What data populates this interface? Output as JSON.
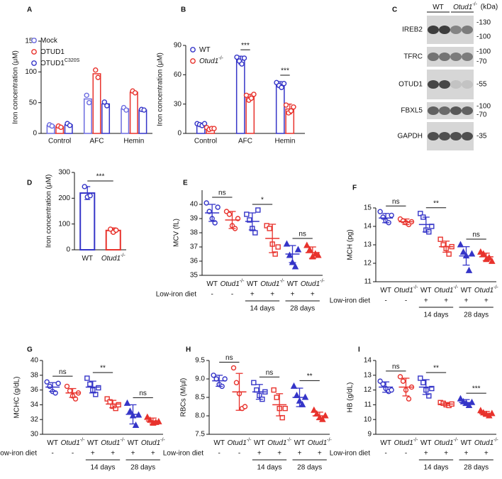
{
  "chart_data": [
    {
      "type": "grouped-bar",
      "panel": "A",
      "y_label": "Iron concentration (μM)",
      "categories": [
        "Control",
        "AFC",
        "Hemin"
      ],
      "ylim": [
        0,
        150
      ],
      "yticks": [
        0,
        50,
        100,
        150
      ],
      "series": [
        {
          "name": "Mock",
          "color": "#6b6be0",
          "values": [
            13,
            56,
            40
          ],
          "points": [
            [
              14,
              12
            ],
            [
              62,
              50
            ],
            [
              42,
              38
            ]
          ]
        },
        {
          "name": "OTUD1",
          "color": "#e8322c",
          "values": [
            11,
            97,
            67
          ],
          "points": [
            [
              12,
              10
            ],
            [
              103,
              91
            ],
            [
              69,
              66
            ]
          ]
        },
        {
          "name": "OTUD1",
          "superscript": "C320S",
          "color": "#3535c8",
          "values": [
            14,
            48,
            38
          ],
          "points": [
            [
              16,
              13
            ],
            [
              51,
              45
            ],
            [
              39,
              38
            ]
          ]
        }
      ]
    },
    {
      "type": "grouped-bar",
      "panel": "B",
      "y_label": "Iron concentration (μM)",
      "categories": [
        "Control",
        "AFC",
        "Hemin"
      ],
      "ylim": [
        0,
        90
      ],
      "yticks": [
        0,
        30,
        60,
        90
      ],
      "series": [
        {
          "name": "WT",
          "color": "#3535c8",
          "values": [
            9,
            75,
            50
          ],
          "errors": [
            1.5,
            4,
            3
          ],
          "points": [
            [
              10,
              9,
              8,
              10
            ],
            [
              78,
              74,
              71,
              77
            ],
            [
              52,
              49,
              47,
              51
            ]
          ]
        },
        {
          "name": "Otud1",
          "superscript": "-/-",
          "italic": true,
          "color": "#e8322c",
          "values": [
            5,
            37,
            25
          ],
          "errors": [
            1.5,
            3,
            5
          ],
          "points": [
            [
              6,
              4,
              5,
              5
            ],
            [
              39,
              34,
              36,
              40
            ],
            [
              29,
              21,
              23,
              27
            ]
          ]
        }
      ],
      "significance": [
        null,
        "***",
        "***"
      ]
    },
    {
      "type": "western-blot",
      "panel": "C",
      "columns": [
        "WT",
        "Otud1"
      ],
      "column_superscripts": [
        null,
        "-/-"
      ],
      "unit_label": "(kDa)",
      "rows": [
        {
          "label": "IREB2",
          "markers": [
            "-130",
            "-100"
          ]
        },
        {
          "label": "TFRC",
          "markers": [
            "-100",
            "-70"
          ]
        },
        {
          "label": "OTUD1",
          "markers": [
            "-55"
          ]
        },
        {
          "label": "FBXL5",
          "markers": [
            "-100",
            "-70"
          ]
        },
        {
          "label": "GAPDH",
          "markers": [
            "-35"
          ]
        }
      ]
    },
    {
      "type": "bar",
      "panel": "D",
      "y_label": "Iron concentration (μM)",
      "categories": [
        "WT",
        "Otud1"
      ],
      "category_superscripts": [
        null,
        "-/-"
      ],
      "colors": [
        "#3535c8",
        "#e8322c"
      ],
      "values": [
        220,
        75
      ],
      "errors": [
        25,
        10
      ],
      "points": [
        [
          245,
          205,
          210
        ],
        [
          80,
          68,
          76
        ]
      ],
      "ylim": [
        0,
        300
      ],
      "yticks": [
        0,
        100,
        200,
        300
      ],
      "significance": "***"
    },
    {
      "type": "scatter-groups",
      "panel": "E",
      "y_label": "MCV (fL)",
      "ylim": [
        35,
        41
      ],
      "yticks": [
        35,
        36,
        37,
        38,
        39,
        40
      ],
      "categories": [
        "WT",
        "Otud1",
        "WT",
        "Otud1",
        "WT",
        "Otud1"
      ],
      "category_superscripts": [
        null,
        "-/-",
        null,
        "-/-",
        null,
        "-/-"
      ],
      "diet_label": "Low-iron diet",
      "diet": [
        "-",
        "-",
        "+",
        "+",
        "+",
        "+"
      ],
      "periods": [
        "14 days",
        "28 days"
      ],
      "colors": [
        "#3535c8",
        "#e8322c",
        "#3535c8",
        "#e8322c",
        "#3535c8",
        "#e8322c"
      ],
      "markers": [
        "circle",
        "circle",
        "square",
        "square",
        "triangle",
        "triangle"
      ],
      "means": [
        39.4,
        38.9,
        38.8,
        37.6,
        36.5,
        36.6
      ],
      "sd": [
        0.6,
        0.6,
        0.6,
        1.0,
        0.6,
        0.4
      ],
      "points": [
        [
          40.1,
          39.5,
          39.0,
          38.7,
          39.8
        ],
        [
          39.5,
          39.3,
          38.5,
          38.3,
          39.0
        ],
        [
          39.3,
          38.9,
          38.3,
          38.0,
          39.6
        ],
        [
          38.5,
          38.3,
          37.2,
          36.5,
          37.0
        ],
        [
          37.2,
          36.4,
          35.9,
          35.6,
          36.8
        ],
        [
          37.1,
          36.8,
          36.3,
          36.5,
          36.4
        ]
      ],
      "significance": [
        "ns",
        "*",
        "ns"
      ]
    },
    {
      "type": "scatter-groups",
      "panel": "F",
      "y_label": "MCH (pg)",
      "ylim": [
        11,
        15
      ],
      "yticks": [
        11,
        12,
        13,
        14,
        15
      ],
      "categories": [
        "WT",
        "Otud1",
        "WT",
        "Otud1",
        "WT",
        "Otud1"
      ],
      "category_superscripts": [
        null,
        "-/-",
        null,
        "-/-",
        null,
        "-/-"
      ],
      "diet_label": "Low-iron diet",
      "diet": [
        "-",
        "-",
        "+",
        "+",
        "+",
        "+"
      ],
      "periods": [
        "14 days",
        "28 days"
      ],
      "colors": [
        "#3535c8",
        "#e8322c",
        "#3535c8",
        "#e8322c",
        "#3535c8",
        "#e8322c"
      ],
      "markers": [
        "circle",
        "circle",
        "square",
        "square",
        "triangle",
        "triangle"
      ],
      "means": [
        14.45,
        14.25,
        14.1,
        12.9,
        12.4,
        12.35
      ],
      "sd": [
        0.25,
        0.15,
        0.4,
        0.3,
        0.5,
        0.2
      ],
      "points": [
        [
          14.8,
          14.5,
          14.3,
          14.2,
          14.6
        ],
        [
          14.4,
          14.3,
          14.2,
          14.1,
          14.25
        ],
        [
          14.7,
          14.5,
          13.8,
          13.7,
          14.0
        ],
        [
          13.3,
          13.0,
          12.8,
          12.5,
          12.9
        ],
        [
          13.0,
          12.6,
          12.4,
          11.6,
          12.5
        ],
        [
          12.6,
          12.5,
          12.2,
          12.3,
          12.1
        ]
      ],
      "significance": [
        "ns",
        "**",
        "ns"
      ]
    },
    {
      "type": "scatter-groups",
      "panel": "G",
      "y_label": "MCHC (g/dL)",
      "ylim": [
        30,
        40
      ],
      "yticks": [
        30,
        32,
        34,
        36,
        38,
        40
      ],
      "categories": [
        "WT",
        "Otud1",
        "WT",
        "Otud1",
        "WT",
        "Otud1"
      ],
      "category_superscripts": [
        null,
        "-/-",
        null,
        "-/-",
        null,
        "-/-"
      ],
      "diet_label": "Low-iron diet",
      "diet": [
        "-",
        "-",
        "+",
        "+",
        "+",
        "+"
      ],
      "periods": [
        "14 days",
        "28 days"
      ],
      "colors": [
        "#3535c8",
        "#e8322c",
        "#3535c8",
        "#e8322c",
        "#3535c8",
        "#e8322c"
      ],
      "markers": [
        "circle",
        "circle",
        "square",
        "square",
        "triangle",
        "triangle"
      ],
      "means": [
        36.4,
        35.6,
        36.4,
        34.1,
        32.7,
        31.8
      ],
      "sd": [
        0.6,
        0.6,
        0.8,
        0.5,
        1.3,
        0.4
      ],
      "points": [
        [
          37.1,
          36.5,
          35.8,
          35.6,
          36.9
        ],
        [
          36.5,
          35.9,
          35.2,
          34.8,
          35.6
        ],
        [
          37.6,
          36.8,
          36.0,
          35.4,
          36.3
        ],
        [
          34.8,
          34.4,
          33.8,
          33.5,
          34.0
        ],
        [
          34.2,
          33.1,
          32.5,
          31.2,
          32.6
        ],
        [
          32.3,
          31.9,
          31.5,
          31.6,
          31.7
        ]
      ],
      "significance": [
        "ns",
        "**",
        "ns"
      ]
    },
    {
      "type": "scatter-groups",
      "panel": "H",
      "y_label": "RBCs (M/µl)",
      "ylim": [
        7.5,
        9.5
      ],
      "yticks": [
        7.5,
        {
          "value": 8,
          "label": "8.0"
        },
        8.5,
        {
          "value": 9,
          "label": "9.0"
        },
        9.5
      ],
      "categories": [
        "WT",
        "Otud1",
        "WT",
        "Otud1",
        "WT",
        "Otud1"
      ],
      "category_superscripts": [
        null,
        "-/-",
        null,
        "-/-",
        null,
        "-/-"
      ],
      "diet_label": "Low-iron diet",
      "diet": [
        "-",
        "-",
        "+",
        "+",
        "+",
        "+"
      ],
      "periods": [
        "14 days",
        "28 days"
      ],
      "colors": [
        "#3535c8",
        "#e8322c",
        "#3535c8",
        "#e8322c",
        "#3535c8",
        "#e8322c"
      ],
      "markers": [
        "circle",
        "circle",
        "square",
        "square",
        "triangle",
        "triangle"
      ],
      "means": [
        8.95,
        8.65,
        8.65,
        8.3,
        8.5,
        8.0
      ],
      "sd": [
        0.15,
        0.5,
        0.2,
        0.3,
        0.25,
        0.1
      ],
      "points": [
        [
          9.1,
          9.0,
          8.85,
          8.8,
          9.0
        ],
        [
          9.3,
          8.9,
          8.6,
          8.2,
          8.25
        ],
        [
          8.9,
          8.7,
          8.55,
          8.45,
          8.65
        ],
        [
          8.7,
          8.5,
          8.2,
          7.95,
          8.2
        ],
        [
          8.8,
          8.55,
          8.4,
          8.3,
          8.5
        ],
        [
          8.15,
          8.05,
          7.95,
          7.9,
          8.0
        ]
      ],
      "significance": [
        "ns",
        "ns",
        "**"
      ]
    },
    {
      "type": "scatter-groups",
      "panel": "I",
      "y_label": "HB (g/dL)",
      "ylim": [
        9,
        14
      ],
      "yticks": [
        9,
        10,
        11,
        12,
        13,
        14
      ],
      "categories": [
        "WT",
        "Otud1",
        "WT",
        "Otud1",
        "WT",
        "Otud1"
      ],
      "category_superscripts": [
        null,
        "-/-",
        null,
        "-/-",
        null,
        "-/-"
      ],
      "diet_label": "Low-iron diet",
      "diet": [
        "-",
        "-",
        "+",
        "+",
        "+",
        "+"
      ],
      "periods": [
        "14 days",
        "28 days"
      ],
      "colors": [
        "#3535c8",
        "#e8322c",
        "#3535c8",
        "#e8322c",
        "#3535c8",
        "#e8322c"
      ],
      "markers": [
        "circle",
        "circle",
        "square",
        "square",
        "triangle",
        "triangle"
      ],
      "means": [
        12.2,
        12.2,
        12.2,
        11.05,
        11.15,
        10.4
      ],
      "sd": [
        0.35,
        0.6,
        0.5,
        0.1,
        0.2,
        0.15
      ],
      "points": [
        [
          12.6,
          12.4,
          12.1,
          11.9,
          12.0
        ],
        [
          12.9,
          12.6,
          12.0,
          11.4,
          12.2
        ],
        [
          12.8,
          12.5,
          12.0,
          11.6,
          12.1
        ],
        [
          11.15,
          11.1,
          11.0,
          10.95,
          11.05
        ],
        [
          11.4,
          11.2,
          11.1,
          10.95,
          11.15
        ],
        [
          10.6,
          10.45,
          10.35,
          10.25,
          10.4
        ]
      ],
      "significance": [
        "ns",
        "**",
        "***"
      ]
    }
  ]
}
